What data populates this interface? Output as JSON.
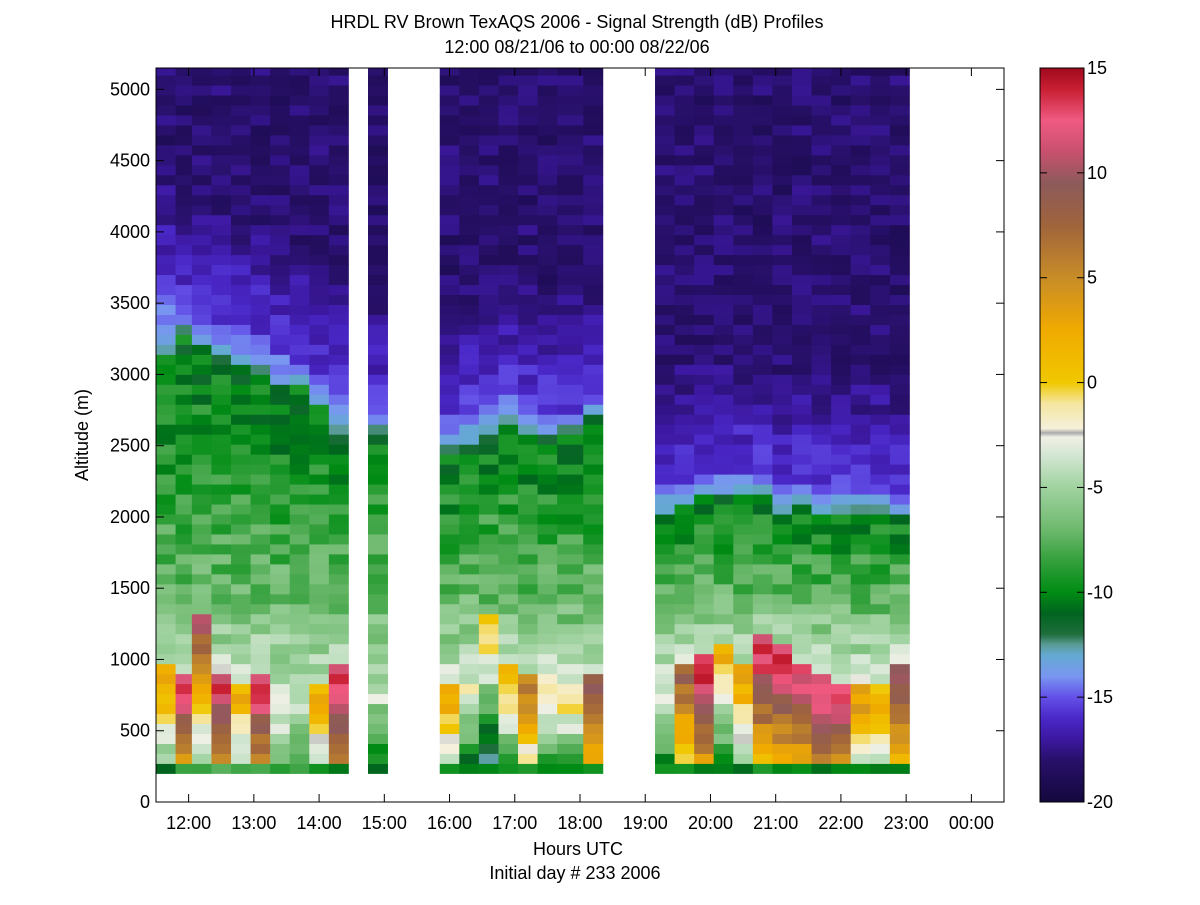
{
  "chart_data": {
    "type": "heatmap",
    "title": "HRDL RV Brown TexAQS 2006 - Signal Strength (dB) Profiles",
    "subtitle": "12:00 08/21/06 to 00:00 08/22/06",
    "xlabel": "Hours UTC",
    "xlabel2": "Initial day # 233  2006",
    "ylabel": "Altitude (m)",
    "xlim": [
      11.5,
      24.5
    ],
    "ylim": [
      0,
      5150
    ],
    "xticks": [
      12,
      13,
      14,
      15,
      16,
      17,
      18,
      19,
      20,
      21,
      22,
      23,
      24
    ],
    "xtick_labels": [
      "12:00",
      "13:00",
      "14:00",
      "15:00",
      "16:00",
      "17:00",
      "18:00",
      "19:00",
      "20:00",
      "21:00",
      "22:00",
      "23:00",
      "00:00"
    ],
    "yticks": [
      0,
      500,
      1000,
      1500,
      2000,
      2500,
      3000,
      3500,
      4000,
      4500,
      5000
    ],
    "ytick_labels": [
      "0",
      "500",
      "1000",
      "1500",
      "2000",
      "2500",
      "3000",
      "3500",
      "4000",
      "4500",
      "5000"
    ],
    "colorbar": {
      "label": "Signal Strength (dB)",
      "range": [
        -20,
        15
      ],
      "ticks": [
        15,
        10,
        5,
        0,
        -5,
        -10,
        -15,
        -20
      ],
      "tick_labels": [
        "15",
        "10",
        "5",
        "0",
        "-5",
        "-10",
        "-15",
        "-20"
      ]
    },
    "data_start_altitude_m": 200,
    "data_top_altitude_m": 5120,
    "profiles": [
      {
        "t": 11.5,
        "top": 3550,
        "pbl": 3150,
        "zmax": 880,
        "vmax": 4,
        "sfc": -10
      },
      {
        "t": 11.8,
        "top": 3450,
        "pbl": 3300,
        "zmax": 800,
        "vmax": 13,
        "sfc": -8
      },
      {
        "t": 12.05,
        "top": 3350,
        "pbl": 3200,
        "zmax": 1250,
        "vmax": 10,
        "sfc": -9
      },
      {
        "t": 12.35,
        "top": 3350,
        "pbl": 3100,
        "zmax": 800,
        "vmax": 13,
        "sfc": -8
      },
      {
        "t": 12.65,
        "top": 3300,
        "pbl": 3050,
        "zmax": 700,
        "vmax": 2,
        "sfc": -9
      },
      {
        "t": 12.95,
        "top": 3250,
        "pbl": 3000,
        "zmax": 780,
        "vmax": 13,
        "sfc": -8
      },
      {
        "t": 13.25,
        "top": 3150,
        "pbl": 2900,
        "zmax": 650,
        "vmax": -2,
        "sfc": -9
      },
      {
        "t": 13.55,
        "top": 3050,
        "pbl": 2950,
        "zmax": 600,
        "vmax": -4,
        "sfc": -8
      },
      {
        "t": 13.85,
        "top": 2950,
        "pbl": 2800,
        "zmax": 700,
        "vmax": 2,
        "sfc": -9
      },
      {
        "t": 14.15,
        "top": 2900,
        "pbl": 2600,
        "zmax": 850,
        "vmax": 14,
        "sfc": -10
      },
      {
        "t": 14.75,
        "top": 2750,
        "pbl": 2600,
        "zmax": 600,
        "vmax": -5,
        "sfc": -10
      },
      {
        "t": 15.85,
        "top": 2700,
        "pbl": 2450,
        "zmax": 750,
        "vmax": 3,
        "sfc": -10
      },
      {
        "t": 16.15,
        "top": 2750,
        "pbl": 2500,
        "zmax": 800,
        "vmax": -2,
        "sfc": -10
      },
      {
        "t": 16.45,
        "top": 2800,
        "pbl": 2600,
        "zmax": 1200,
        "vmax": 1,
        "sfc": -10
      },
      {
        "t": 16.75,
        "top": 2850,
        "pbl": 2650,
        "zmax": 900,
        "vmax": 2,
        "sfc": -10
      },
      {
        "t": 17.05,
        "top": 2800,
        "pbl": 2600,
        "zmax": 780,
        "vmax": 6,
        "sfc": -10
      },
      {
        "t": 17.35,
        "top": 2750,
        "pbl": 2550,
        "zmax": 800,
        "vmax": 0,
        "sfc": -10
      },
      {
        "t": 17.65,
        "top": 2750,
        "pbl": 2600,
        "zmax": 700,
        "vmax": -1,
        "sfc": -10
      },
      {
        "t": 18.05,
        "top": 2800,
        "pbl": 2700,
        "zmax": 820,
        "vmax": 10,
        "sfc": -10
      },
      {
        "t": 19.15,
        "top": 2250,
        "pbl": 2050,
        "zmax": 700,
        "vmax": -3,
        "sfc": -10
      },
      {
        "t": 19.45,
        "top": 2250,
        "pbl": 2100,
        "zmax": 850,
        "vmax": 8,
        "sfc": -10
      },
      {
        "t": 19.75,
        "top": 2300,
        "pbl": 2150,
        "zmax": 950,
        "vmax": 15,
        "sfc": -10
      },
      {
        "t": 20.05,
        "top": 2300,
        "pbl": 2150,
        "zmax": 1000,
        "vmax": 2,
        "sfc": -10
      },
      {
        "t": 20.35,
        "top": 2300,
        "pbl": 2150,
        "zmax": 900,
        "vmax": 4,
        "sfc": -10
      },
      {
        "t": 20.65,
        "top": 2300,
        "pbl": 2150,
        "zmax": 1050,
        "vmax": 14,
        "sfc": -10
      },
      {
        "t": 20.95,
        "top": 2200,
        "pbl": 2050,
        "zmax": 1000,
        "vmax": 14,
        "sfc": -10
      },
      {
        "t": 21.25,
        "top": 2250,
        "pbl": 2100,
        "zmax": 900,
        "vmax": 13,
        "sfc": -10
      },
      {
        "t": 21.55,
        "top": 2200,
        "pbl": 2050,
        "zmax": 800,
        "vmax": 14,
        "sfc": -10
      },
      {
        "t": 21.85,
        "top": 2200,
        "pbl": 2050,
        "zmax": 750,
        "vmax": 13,
        "sfc": -10
      },
      {
        "t": 22.15,
        "top": 2200,
        "pbl": 2050,
        "zmax": 700,
        "vmax": 4,
        "sfc": -10
      },
      {
        "t": 22.45,
        "top": 2200,
        "pbl": 2050,
        "zmax": 700,
        "vmax": 3,
        "sfc": -11
      },
      {
        "t": 22.75,
        "top": 2150,
        "pbl": 2000,
        "zmax": 850,
        "vmax": 10,
        "sfc": -10
      }
    ],
    "colormap": [
      [
        -20,
        "#14083d"
      ],
      [
        -18,
        "#28106a"
      ],
      [
        -17,
        "#3c18a0"
      ],
      [
        -16,
        "#4a28c8"
      ],
      [
        -15,
        "#6450e8"
      ],
      [
        -14,
        "#7896f0"
      ],
      [
        -13,
        "#64aad2"
      ],
      [
        -12.5,
        "#5a9b96"
      ],
      [
        -12,
        "#1e6e3c"
      ],
      [
        -11,
        "#00641e"
      ],
      [
        -10,
        "#008c14"
      ],
      [
        -8.5,
        "#34a03c"
      ],
      [
        -7,
        "#6eb96e"
      ],
      [
        -5,
        "#a0d2a0"
      ],
      [
        -3.5,
        "#d2e6d2"
      ],
      [
        -2.6,
        "#f0f0e6"
      ],
      [
        -2.4,
        "#aaaaaa"
      ],
      [
        -2.2,
        "#f5f0dc"
      ],
      [
        -1,
        "#f5e6a0"
      ],
      [
        0,
        "#f0c800"
      ],
      [
        2.5,
        "#f0aa00"
      ],
      [
        5,
        "#c88c28"
      ],
      [
        7.5,
        "#a0643c"
      ],
      [
        9.5,
        "#8c5a5a"
      ],
      [
        11,
        "#c8506e"
      ],
      [
        12.5,
        "#f05a82"
      ],
      [
        14,
        "#c81e32"
      ],
      [
        15,
        "#a00a1e"
      ]
    ]
  }
}
